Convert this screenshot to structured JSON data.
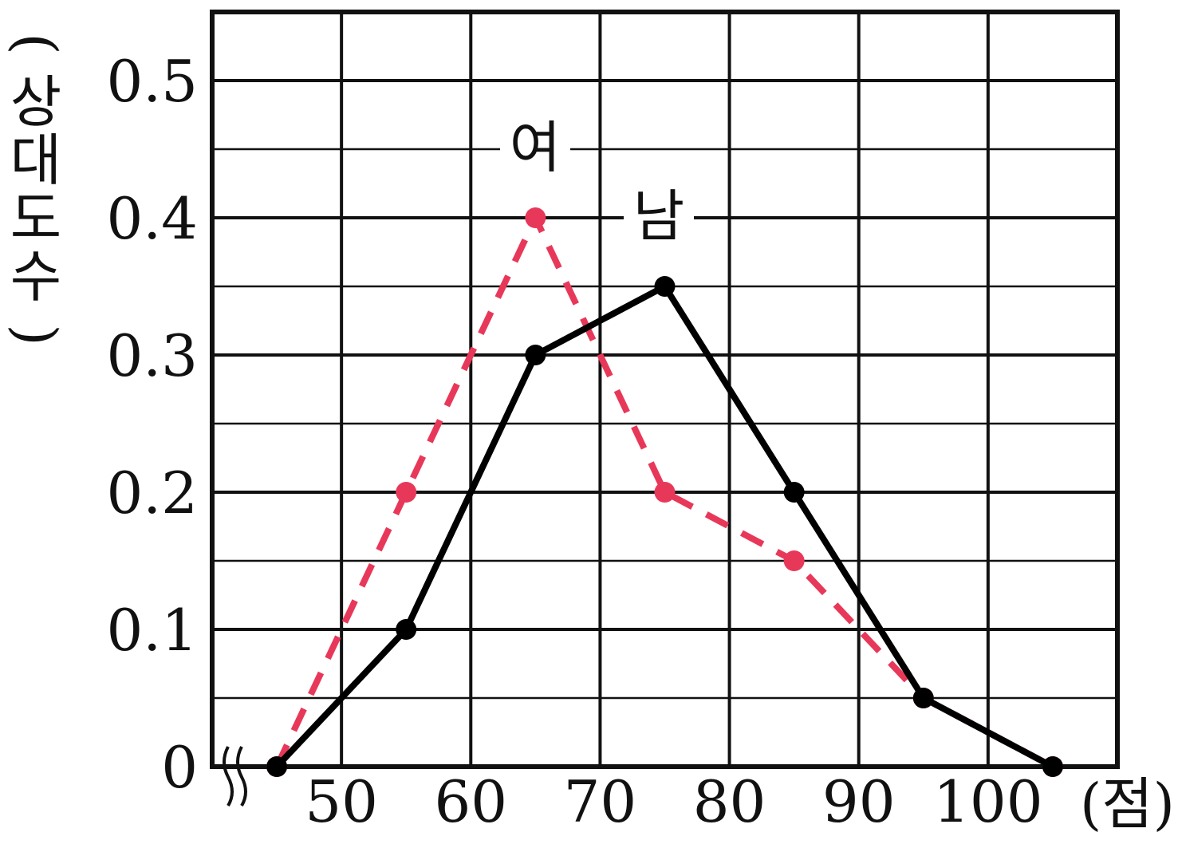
{
  "chart_data": {
    "type": "line",
    "title": "",
    "xlabel": "(점)",
    "ylabel": "(상대도수)",
    "x_axis_break": true,
    "x": [
      45,
      55,
      65,
      75,
      85,
      95,
      105
    ],
    "xlim": [
      40,
      110
    ],
    "ylim": [
      0,
      0.55
    ],
    "x_ticks": [
      50,
      60,
      70,
      80,
      90,
      100
    ],
    "x_tick_labels": [
      "50",
      "60",
      "70",
      "80",
      "90",
      "100"
    ],
    "y_ticks": [
      0,
      0.1,
      0.2,
      0.3,
      0.4,
      0.5
    ],
    "y_tick_labels": [
      "0",
      "0.1",
      "0.2",
      "0.3",
      "0.4",
      "0.5"
    ],
    "grid": true,
    "legend": "inline labels",
    "series": [
      {
        "name": "남",
        "values": [
          0,
          0.1,
          0.3,
          0.35,
          0.2,
          0.05,
          0
        ],
        "color": "#000000",
        "style": "solid"
      },
      {
        "name": "여",
        "values": [
          0,
          0.2,
          0.4,
          0.2,
          0.15,
          0.05,
          0
        ],
        "color": "#e8385a",
        "style": "dashed"
      }
    ]
  }
}
